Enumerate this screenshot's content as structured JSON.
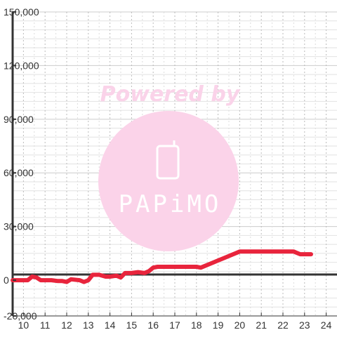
{
  "chart_data": {
    "type": "line",
    "title": "",
    "xlabel": "",
    "ylabel": "",
    "xlim": [
      9.5,
      24.5
    ],
    "ylim": [
      -20000,
      150000
    ],
    "x_ticks": [
      "10",
      "11",
      "12",
      "13",
      "14",
      "15",
      "16",
      "17",
      "18",
      "19",
      "20",
      "21",
      "22",
      "23",
      "24"
    ],
    "y_ticks": [
      "150,000",
      "120,000",
      "90,000",
      "60,000",
      "30,000",
      "0",
      "-20,000"
    ],
    "y_tick_values": [
      150000,
      120000,
      90000,
      60000,
      30000,
      0,
      -20000
    ],
    "grid": true,
    "legend": "none",
    "series": [
      {
        "color": "#e8243c",
        "x": [
          9.5,
          10.2,
          10.4,
          10.6,
          10.8,
          11.3,
          11.6,
          11.8,
          12.0,
          12.2,
          12.6,
          12.8,
          13.0,
          13.2,
          13.5,
          13.8,
          14.0,
          14.3,
          14.5,
          14.7,
          15.0,
          15.3,
          15.6,
          15.8,
          16.0,
          16.2,
          16.6,
          17.0,
          17.5,
          18.0,
          18.2,
          18.4,
          18.6,
          18.8,
          19.0,
          19.2,
          19.6,
          19.8,
          20.0,
          20.5,
          21.0,
          21.5,
          22.0,
          22.5,
          22.6,
          22.8,
          23.0,
          23.3
        ],
        "y": [
          0,
          0,
          2000,
          1500,
          0,
          0,
          -500,
          -500,
          -1000,
          500,
          0,
          -1000,
          0,
          3000,
          3000,
          2000,
          2000,
          2500,
          1500,
          4000,
          4000,
          4500,
          4000,
          5000,
          7000,
          7500,
          7500,
          7500,
          7500,
          7500,
          7000,
          8000,
          9000,
          10000,
          11000,
          12000,
          14000,
          15000,
          16000,
          16000,
          16000,
          16000,
          16000,
          16000,
          15500,
          14500,
          14500,
          14500
        ]
      }
    ]
  },
  "watermark": {
    "powered_by": "Powered by",
    "brand": "PAPiMO",
    "circle_color": "#fbd3e9",
    "text_color": "#fad3e9"
  },
  "colors": {
    "axis": "#333333",
    "grid_major": "#cccccc",
    "grid_minor": "#bbbbbb",
    "line": "#e8243c"
  }
}
